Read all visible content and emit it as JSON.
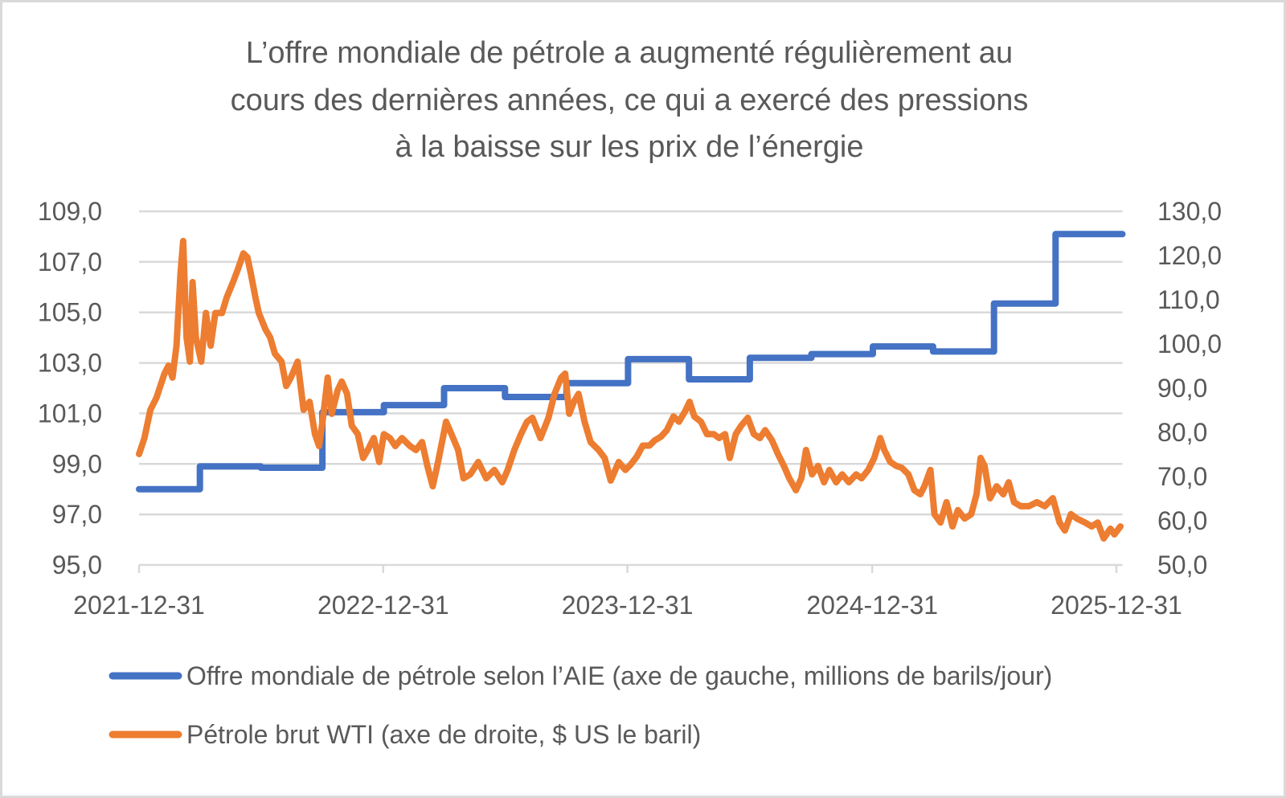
{
  "chart_data": {
    "type": "line",
    "title": [
      "L’offre mondiale de pétrole a augmenté régulièrement au",
      "cours des dernières années, ce qui a exercé des pressions",
      "à la baisse sur les prix de l’énergie"
    ],
    "x_ticks": [
      "2021-12-31",
      "2022-12-31",
      "2023-12-31",
      "2024-12-31",
      "2025-12-31"
    ],
    "xlim": [
      "2021-12-31",
      "2026-01-09"
    ],
    "y_left": {
      "lim": [
        95,
        109
      ],
      "ticks": [
        "95,0",
        "97,0",
        "99,0",
        "101,0",
        "103,0",
        "105,0",
        "107,0",
        "109,0"
      ]
    },
    "y_right": {
      "lim": [
        50,
        130
      ],
      "ticks": [
        "50,0",
        "60,0",
        "70,0",
        "80,0",
        "90,0",
        "100,0",
        "110,0",
        "120,0",
        "130,0"
      ]
    },
    "grid": true,
    "legend_position": "bottom",
    "series": [
      {
        "name": "Offre mondiale de pétrole selon l’AIE (axe de gauche, millions de barils/jour)",
        "axis": "left",
        "color": "#4472C4",
        "step": true,
        "x": [
          "2021-12-31",
          "2022-04-01",
          "2022-07-01",
          "2022-10-01",
          "2023-01-01",
          "2023-04-01",
          "2023-07-01",
          "2023-10-01",
          "2024-01-01",
          "2024-04-01",
          "2024-07-01",
          "2024-10-01",
          "2025-01-01",
          "2025-04-01",
          "2025-07-01",
          "2025-10-01",
          "2026-01-09"
        ],
        "y": [
          98.0,
          98.9,
          98.85,
          101.05,
          101.33,
          102.0,
          101.65,
          102.2,
          103.15,
          102.35,
          103.2,
          103.35,
          103.65,
          103.45,
          105.35,
          108.1,
          108.1
        ]
      },
      {
        "name": "Pétrole brut WTI (axe de droite, $ US le baril)",
        "axis": "right",
        "color": "#ED7D31",
        "x": [
          "2021-12-31",
          "2022-01-08",
          "2022-01-17",
          "2022-01-26",
          "2022-02-07",
          "2022-02-13",
          "2022-02-19",
          "2022-02-25",
          "2022-03-03",
          "2022-03-07",
          "2022-03-12",
          "2022-03-17",
          "2022-03-21",
          "2022-03-26",
          "2022-04-03",
          "2022-04-10",
          "2022-04-17",
          "2022-04-24",
          "2022-05-04",
          "2022-05-11",
          "2022-05-21",
          "2022-05-28",
          "2022-06-05",
          "2022-06-11",
          "2022-06-16",
          "2022-06-23",
          "2022-06-28",
          "2022-07-08",
          "2022-07-15",
          "2022-07-22",
          "2022-08-01",
          "2022-08-08",
          "2022-08-15",
          "2022-08-25",
          "2022-09-03",
          "2022-09-12",
          "2022-09-20",
          "2022-09-26",
          "2022-10-02",
          "2022-10-09",
          "2022-10-15",
          "2022-10-24",
          "2022-10-30",
          "2022-11-07",
          "2022-11-14",
          "2022-11-23",
          "2022-12-01",
          "2022-12-08",
          "2022-12-17",
          "2022-12-25",
          "2023-01-01",
          "2023-01-10",
          "2023-01-18",
          "2023-01-28",
          "2023-02-09",
          "2023-02-18",
          "2023-02-27",
          "2023-03-07",
          "2023-03-15",
          "2023-03-23",
          "2023-04-04",
          "2023-04-12",
          "2023-04-22",
          "2023-04-30",
          "2023-05-10",
          "2023-05-22",
          "2023-06-03",
          "2023-06-15",
          "2023-06-27",
          "2023-07-05",
          "2023-07-15",
          "2023-07-25",
          "2023-08-03",
          "2023-08-11",
          "2023-08-23",
          "2023-09-04",
          "2023-09-13",
          "2023-09-23",
          "2023-09-29",
          "2023-10-05",
          "2023-10-12",
          "2023-10-19",
          "2023-10-28",
          "2023-11-06",
          "2023-11-18",
          "2023-11-27",
          "2023-12-06",
          "2023-12-18",
          "2023-12-28",
          "2024-01-05",
          "2024-01-14",
          "2024-01-23",
          "2024-02-02",
          "2024-02-10",
          "2024-02-19",
          "2024-02-28",
          "2024-03-09",
          "2024-03-17",
          "2024-03-26",
          "2024-04-02",
          "2024-04-09",
          "2024-04-19",
          "2024-04-28",
          "2024-05-08",
          "2024-05-16",
          "2024-05-25",
          "2024-06-01",
          "2024-06-10",
          "2024-06-18",
          "2024-06-28",
          "2024-07-07",
          "2024-07-16",
          "2024-07-24",
          "2024-08-03",
          "2024-08-12",
          "2024-08-21",
          "2024-08-29",
          "2024-09-08",
          "2024-09-16",
          "2024-09-23",
          "2024-10-02",
          "2024-10-11",
          "2024-10-20",
          "2024-10-28",
          "2024-11-07",
          "2024-11-16",
          "2024-11-26",
          "2024-12-07",
          "2024-12-15",
          "2024-12-25",
          "2025-01-03",
          "2025-01-12",
          "2025-01-18",
          "2025-01-27",
          "2025-02-05",
          "2025-02-13",
          "2025-02-23",
          "2025-03-04",
          "2025-03-13",
          "2025-03-19",
          "2025-03-28",
          "2025-04-03",
          "2025-04-12",
          "2025-04-21",
          "2025-04-30",
          "2025-05-08",
          "2025-05-18",
          "2025-05-28",
          "2025-06-05",
          "2025-06-11",
          "2025-06-17",
          "2025-06-25",
          "2025-07-05",
          "2025-07-15",
          "2025-07-23",
          "2025-07-31",
          "2025-08-10",
          "2025-08-22",
          "2025-09-03",
          "2025-09-15",
          "2025-09-27",
          "2025-10-07",
          "2025-10-15",
          "2025-10-24",
          "2025-11-02",
          "2025-11-14",
          "2025-11-24",
          "2025-12-03",
          "2025-12-12",
          "2025-12-22",
          "2025-12-28",
          "2026-01-06"
        ],
        "y": [
          75.1,
          78.7,
          85.1,
          87.8,
          93.3,
          95.1,
          92.4,
          99.6,
          116.0,
          123.3,
          101.5,
          96.0,
          114.0,
          101.5,
          96.0,
          107.0,
          99.6,
          107.0,
          107.0,
          110.5,
          114.2,
          117.0,
          120.5,
          119.6,
          116.0,
          110.5,
          107.0,
          103.3,
          101.5,
          97.8,
          96.0,
          90.5,
          92.4,
          96.0,
          85.1,
          86.9,
          79.6,
          76.9,
          83.3,
          92.4,
          84.2,
          89.6,
          91.5,
          88.7,
          81.5,
          79.6,
          74.2,
          76.0,
          78.7,
          73.3,
          79.6,
          78.7,
          76.9,
          78.7,
          76.9,
          76.0,
          77.8,
          72.4,
          67.8,
          73.3,
          82.4,
          79.6,
          76.0,
          69.6,
          70.5,
          73.3,
          69.6,
          71.5,
          68.7,
          71.5,
          76.0,
          79.6,
          82.4,
          83.3,
          78.7,
          83.3,
          88.7,
          92.4,
          93.3,
          84.2,
          86.9,
          88.7,
          82.4,
          77.8,
          76.0,
          74.2,
          69.1,
          73.3,
          71.5,
          72.7,
          74.5,
          77.0,
          77.0,
          78.2,
          79.0,
          80.5,
          83.6,
          82.4,
          84.7,
          86.9,
          83.6,
          82.4,
          79.6,
          79.6,
          78.7,
          79.6,
          74.2,
          79.6,
          81.5,
          83.3,
          79.6,
          78.7,
          80.5,
          78.2,
          75.1,
          72.4,
          69.6,
          66.9,
          69.6,
          76.0,
          70.5,
          72.4,
          68.7,
          71.5,
          68.7,
          70.5,
          68.7,
          70.5,
          69.6,
          71.5,
          74.2,
          78.7,
          76.0,
          73.3,
          72.4,
          72.0,
          70.5,
          66.9,
          66.0,
          67.8,
          71.5,
          61.5,
          59.6,
          64.2,
          58.7,
          62.4,
          60.5,
          61.5,
          66.0,
          74.2,
          72.4,
          65.1,
          67.8,
          66.0,
          68.7,
          64.2,
          63.3,
          63.3,
          64.2,
          63.3,
          65.1,
          59.6,
          57.8,
          61.5,
          60.5,
          59.6,
          58.7,
          59.6,
          56.0,
          58.2,
          56.9,
          58.7
        ]
      }
    ]
  }
}
